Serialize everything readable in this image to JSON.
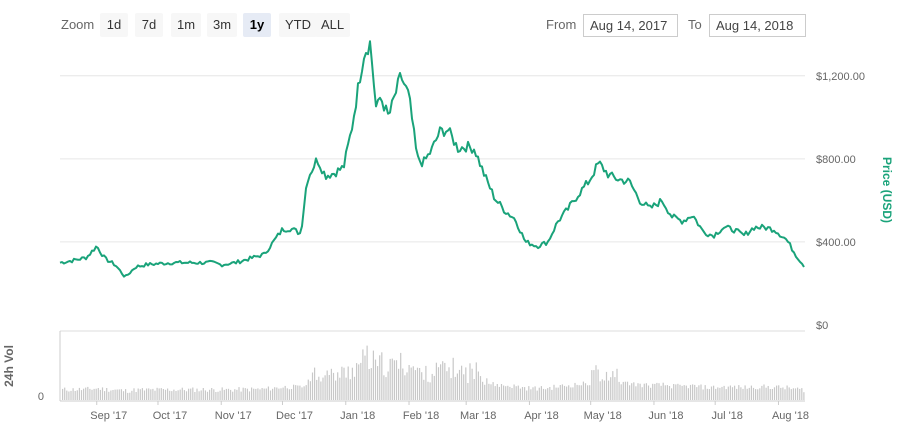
{
  "toolbar": {
    "zoom_label": "Zoom",
    "zoom_buttons": [
      "1d",
      "7d",
      "1m",
      "3m",
      "1y",
      "YTD",
      "ALL"
    ],
    "active_zoom": "1y",
    "from_label": "From",
    "from_value": "Aug 14, 2017",
    "to_label": "To",
    "to_value": "Aug 14, 2018"
  },
  "colors": {
    "price_line": "#1aa37a",
    "volume_bars": "#c8c8c8",
    "price_axis_title": "#1aa37a",
    "volume_axis_title": "#666666"
  },
  "chart_data": {
    "type": "line",
    "title": "",
    "price_axis": {
      "label": "Price (USD)",
      "ticks": [
        "$0",
        "$400.00",
        "$800.00",
        "$1,200.00"
      ],
      "tick_values": [
        0,
        400,
        800,
        1200
      ],
      "ylim": [
        0,
        1300
      ],
      "gridlines": true
    },
    "volume_axis": {
      "label": "24h Vol",
      "ticks": [
        "0"
      ]
    },
    "x_axis": {
      "ticks": [
        "Sep '17",
        "Oct '17",
        "Nov '17",
        "Dec '17",
        "Jan '18",
        "Feb '18",
        "Mar '18",
        "Apr '18",
        "May '18",
        "Jun '18",
        "Jul '18",
        "Aug '18"
      ],
      "tick_dates": [
        "2017-09-01",
        "2017-10-01",
        "2017-11-01",
        "2017-12-01",
        "2018-01-01",
        "2018-02-01",
        "2018-03-01",
        "2018-04-01",
        "2018-05-01",
        "2018-06-01",
        "2018-07-01",
        "2018-08-01"
      ],
      "range": [
        "2017-08-14",
        "2018-08-14"
      ]
    },
    "series": [
      {
        "values": [
          [
            "2017-08-14",
            300
          ],
          [
            "2017-08-20",
            310
          ],
          [
            "2017-08-27",
            325
          ],
          [
            "2017-09-01",
            380
          ],
          [
            "2017-09-05",
            320
          ],
          [
            "2017-09-10",
            290
          ],
          [
            "2017-09-15",
            230
          ],
          [
            "2017-09-20",
            280
          ],
          [
            "2017-09-25",
            290
          ],
          [
            "2017-10-01",
            295
          ],
          [
            "2017-10-08",
            300
          ],
          [
            "2017-10-15",
            300
          ],
          [
            "2017-10-22",
            300
          ],
          [
            "2017-10-28",
            300
          ],
          [
            "2017-11-01",
            290
          ],
          [
            "2017-11-08",
            300
          ],
          [
            "2017-11-15",
            320
          ],
          [
            "2017-11-22",
            340
          ],
          [
            "2017-11-28",
            420
          ],
          [
            "2017-12-01",
            460
          ],
          [
            "2017-12-05",
            465
          ],
          [
            "2017-12-10",
            440
          ],
          [
            "2017-12-13",
            700
          ],
          [
            "2017-12-18",
            800
          ],
          [
            "2017-12-22",
            720
          ],
          [
            "2017-12-26",
            730
          ],
          [
            "2017-12-31",
            760
          ],
          [
            "2018-01-04",
            950
          ],
          [
            "2018-01-08",
            1200
          ],
          [
            "2018-01-10",
            1310
          ],
          [
            "2018-01-13",
            1360
          ],
          [
            "2018-01-16",
            1030
          ],
          [
            "2018-01-18",
            1100
          ],
          [
            "2018-01-22",
            1000
          ],
          [
            "2018-01-28",
            1200
          ],
          [
            "2018-02-01",
            1100
          ],
          [
            "2018-02-05",
            800
          ],
          [
            "2018-02-08",
            780
          ],
          [
            "2018-02-12",
            840
          ],
          [
            "2018-02-16",
            930
          ],
          [
            "2018-02-20",
            940
          ],
          [
            "2018-02-25",
            850
          ],
          [
            "2018-03-01",
            860
          ],
          [
            "2018-03-05",
            850
          ],
          [
            "2018-03-10",
            720
          ],
          [
            "2018-03-15",
            610
          ],
          [
            "2018-03-20",
            550
          ],
          [
            "2018-03-25",
            510
          ],
          [
            "2018-03-30",
            400
          ],
          [
            "2018-04-05",
            380
          ],
          [
            "2018-04-10",
            400
          ],
          [
            "2018-04-15",
            500
          ],
          [
            "2018-04-20",
            560
          ],
          [
            "2018-04-25",
            630
          ],
          [
            "2018-04-30",
            690
          ],
          [
            "2018-05-05",
            780
          ],
          [
            "2018-05-10",
            720
          ],
          [
            "2018-05-15",
            700
          ],
          [
            "2018-05-20",
            690
          ],
          [
            "2018-05-25",
            600
          ],
          [
            "2018-05-30",
            560
          ],
          [
            "2018-06-05",
            600
          ],
          [
            "2018-06-10",
            520
          ],
          [
            "2018-06-15",
            500
          ],
          [
            "2018-06-20",
            530
          ],
          [
            "2018-06-25",
            450
          ],
          [
            "2018-06-30",
            430
          ],
          [
            "2018-07-05",
            470
          ],
          [
            "2018-07-10",
            460
          ],
          [
            "2018-07-15",
            430
          ],
          [
            "2018-07-20",
            470
          ],
          [
            "2018-07-25",
            470
          ],
          [
            "2018-07-30",
            460
          ],
          [
            "2018-08-05",
            410
          ],
          [
            "2018-08-10",
            330
          ],
          [
            "2018-08-14",
            280
          ]
        ]
      }
    ]
  }
}
